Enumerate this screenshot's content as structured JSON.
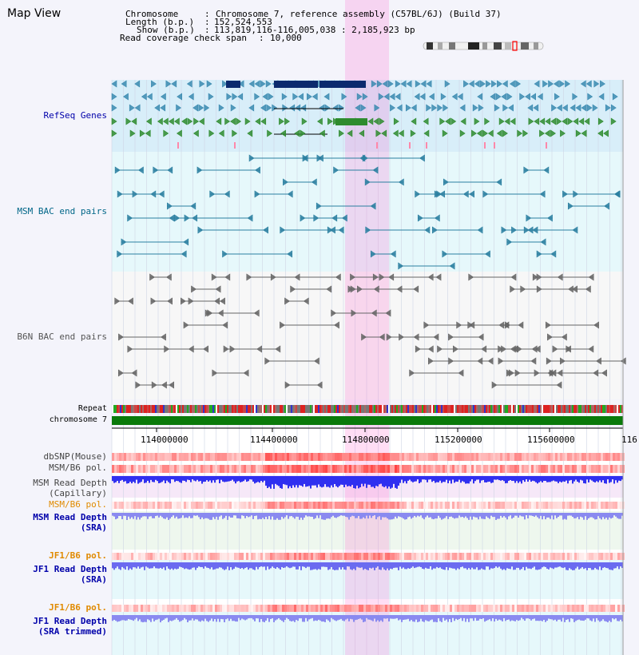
{
  "view": {
    "title": "Map View",
    "chromosome_label": "Chromosome",
    "chromosome_value": "Chromosome 7, reference assembly (C57BL/6J) (Build 37)",
    "length_label": "Length (b.p.)",
    "length_value": "152,524,553",
    "show_label": "Show (b.p.)",
    "show_value": "113,819,116-116,005,038 : 2,185,923 bp",
    "coverage_label": "Read coverage check span",
    "coverage_value": "10,000"
  },
  "axis": {
    "ticks": [
      "114000000",
      "114400000",
      "114800000",
      "115200000",
      "115600000",
      "116"
    ]
  },
  "tracks": {
    "refseq": "RefSeq Genes",
    "msm_bac": "MSM BAC end pairs",
    "b6n_bac": "B6N BAC end pairs",
    "repeat": "Repeat",
    "chromosome": "chromosome 7",
    "dbsnp": "dbSNP(Mouse)",
    "msm_b6_pol": "MSM/B6 pol.",
    "msm_depth_cap": "MSM Read Depth\n(Capillary)",
    "msm_b6_pol2": "MSM/B6 pol.",
    "msm_depth_sra": "MSM Read Depth\n(SRA)",
    "jf1_b6_pol": "JF1/B6 pol.",
    "jf1_depth_sra": "JF1 Read Depth\n(SRA)",
    "jf1_b6_pol2": "JF1/B6 pol.",
    "jf1_depth_trim": "JF1 Read Depth\n(SRA trimmed)"
  },
  "colors": {
    "refseq_label": "#0000aa",
    "msm_label": "#006688",
    "b6n_label": "#555555",
    "orange_label": "#e08a00",
    "blue_label": "#0000aa",
    "highlight": "#ff66cc",
    "gene_dark": "#0b2a6e",
    "gene_teal": "#3a8ab0",
    "gene_green": "#2e8b2e",
    "chromosome_bar": "#0a7a0a"
  },
  "ideogram": {
    "selected_region": "chr7 113.8-116.0 Mb"
  }
}
